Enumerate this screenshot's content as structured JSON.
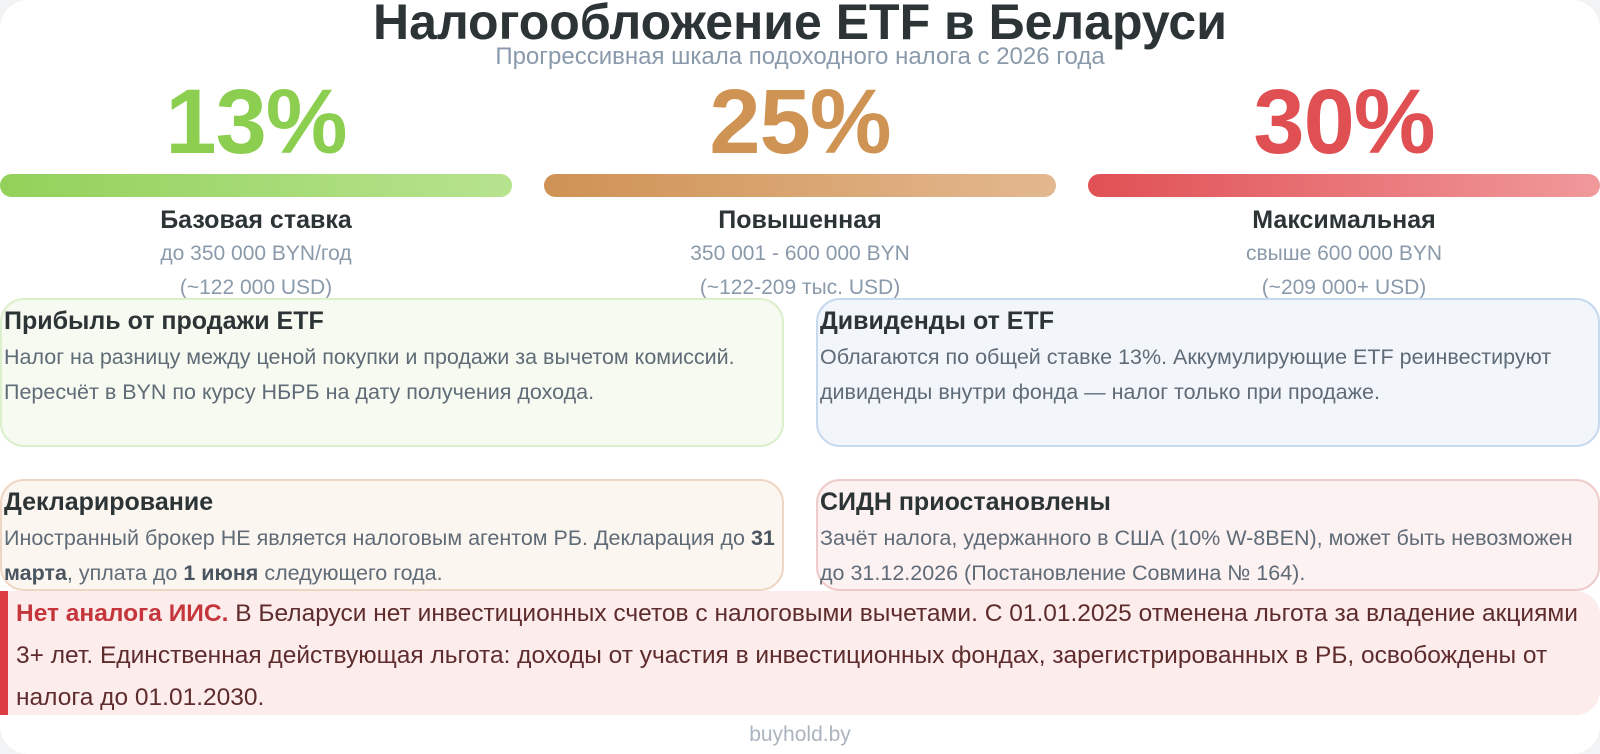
{
  "header": {
    "title": "Налогообложение ETF в Беларуси",
    "subtitle": "Прогрессивная шкала подоходного налога с 2026 года"
  },
  "rates": [
    {
      "percent": "13%",
      "name": "Базовая ставка",
      "line1": "до 350 000 BYN/год",
      "line2": "(~122 000 USD)",
      "color": "#8ccf50"
    },
    {
      "percent": "25%",
      "name": "Повышенная",
      "line1": "350 001 - 600 000 BYN",
      "line2": "(~122-209 тыс. USD)",
      "color": "#cf9454"
    },
    {
      "percent": "30%",
      "name": "Максимальная",
      "line1": "свыше 600 000 BYN",
      "line2": "(~209 000+ USD)",
      "color": "#e04f52"
    }
  ],
  "cards": {
    "profit": {
      "title": "Прибыль от продажи ETF",
      "text": "Налог на разницу между ценой покупки и продажи за вычетом комиссий. Пересчёт в BYN по курсу НБРБ на дату получения дохода."
    },
    "dividends": {
      "title": "Дивиденды от ETF",
      "text": "Облагаются по общей ставке 13%. Аккумулирующие ETF реинвестируют дивиденды внутри фонда — налог только при продаже."
    },
    "declaration": {
      "title": "Декларирование",
      "text_1": "Иностранный брокер НЕ является налоговым агентом РБ. Декларация до ",
      "bold_1": "31 марта",
      "text_2": ", уплата до ",
      "bold_2": "1 июня",
      "text_3": " следующего года."
    },
    "dtt": {
      "title": "СИДН приостановлены",
      "text": "Зачёт налога, удержанного в США (10% W-8BEN), может быть невозможен до 31.12.2026 (Постановление Совмина № 164)."
    }
  },
  "note": {
    "lead": "Нет аналога ИИС.",
    "text": " В Беларуси нет инвестиционных счетов с налоговыми вычетами. С 01.01.2025 отменена льгота за владение акциями 3+ лет. Единственная действующая льгота: доходы от участия в инвестиционных фондах, зарегистрированных в РБ, освобождены от налога до 01.01.2030."
  },
  "footer": "buyhold.by"
}
